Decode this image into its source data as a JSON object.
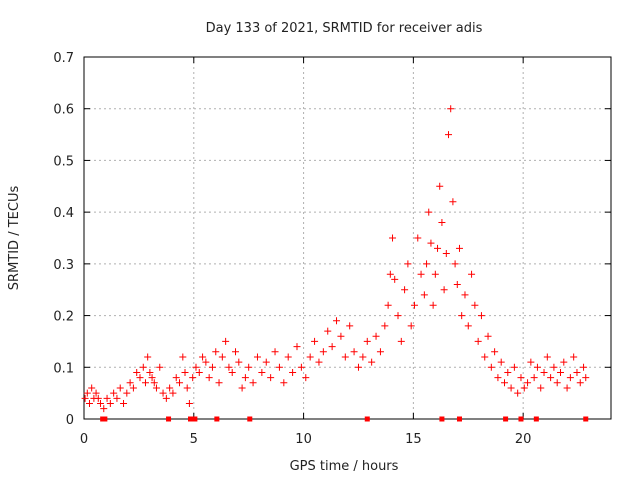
{
  "chart_data": {
    "type": "scatter",
    "title": "Day 133 of 2021, SRMTID for receiver adis",
    "xlabel": "GPS time / hours",
    "ylabel": "SRMTID / TECUs",
    "xlim": [
      0,
      24
    ],
    "ylim": [
      0,
      0.7
    ],
    "xticks": [
      0,
      5,
      10,
      15,
      20
    ],
    "yticks": [
      0,
      0.1,
      0.2,
      0.3,
      0.4,
      0.5,
      0.6,
      0.7
    ],
    "grid": true,
    "marker": "+",
    "color": "#ff0000",
    "series": [
      {
        "name": "SRMTID",
        "x": [
          0.05,
          0.15,
          0.25,
          0.35,
          0.45,
          0.55,
          0.65,
          0.75,
          0.9,
          1.05,
          1.2,
          1.35,
          1.5,
          1.65,
          1.8,
          1.95,
          2.1,
          2.25,
          2.4,
          2.55,
          2.7,
          2.8,
          2.9,
          3.0,
          3.1,
          3.2,
          3.3,
          3.45,
          3.6,
          3.75,
          3.9,
          4.05,
          4.2,
          4.35,
          4.5,
          4.6,
          4.7,
          4.8,
          4.95,
          5.1,
          5.25,
          5.4,
          5.55,
          5.7,
          5.85,
          6.0,
          6.15,
          6.3,
          6.45,
          6.6,
          6.75,
          6.9,
          7.05,
          7.2,
          7.35,
          7.5,
          7.7,
          7.9,
          8.1,
          8.3,
          8.5,
          8.7,
          8.9,
          9.1,
          9.3,
          9.5,
          9.7,
          9.9,
          10.1,
          10.3,
          10.5,
          10.7,
          10.9,
          11.1,
          11.3,
          11.5,
          11.7,
          11.9,
          12.1,
          12.3,
          12.5,
          12.7,
          12.9,
          13.1,
          13.3,
          13.5,
          13.7,
          13.85,
          13.95,
          14.05,
          14.15,
          14.3,
          14.45,
          14.6,
          14.75,
          14.9,
          15.05,
          15.2,
          15.35,
          15.5,
          15.6,
          15.7,
          15.8,
          15.9,
          16.0,
          16.1,
          16.2,
          16.3,
          16.4,
          16.5,
          16.6,
          16.7,
          16.8,
          16.9,
          17.0,
          17.1,
          17.2,
          17.35,
          17.5,
          17.65,
          17.8,
          17.95,
          18.1,
          18.25,
          18.4,
          18.55,
          18.7,
          18.85,
          19.0,
          19.15,
          19.3,
          19.45,
          19.6,
          19.75,
          19.9,
          20.05,
          20.2,
          20.35,
          20.5,
          20.65,
          20.8,
          20.95,
          21.1,
          21.25,
          21.4,
          21.55,
          21.7,
          21.85,
          22.0,
          22.15,
          22.3,
          22.45,
          22.6,
          22.75,
          22.85
        ],
        "y": [
          0.04,
          0.05,
          0.03,
          0.06,
          0.04,
          0.05,
          0.04,
          0.03,
          0.02,
          0.04,
          0.03,
          0.05,
          0.04,
          0.06,
          0.03,
          0.05,
          0.07,
          0.06,
          0.09,
          0.08,
          0.1,
          0.07,
          0.12,
          0.09,
          0.08,
          0.07,
          0.06,
          0.1,
          0.05,
          0.04,
          0.06,
          0.05,
          0.08,
          0.07,
          0.12,
          0.09,
          0.06,
          0.03,
          0.08,
          0.1,
          0.09,
          0.12,
          0.11,
          0.08,
          0.1,
          0.13,
          0.07,
          0.12,
          0.15,
          0.1,
          0.09,
          0.13,
          0.11,
          0.06,
          0.08,
          0.1,
          0.07,
          0.12,
          0.09,
          0.11,
          0.08,
          0.13,
          0.1,
          0.07,
          0.12,
          0.09,
          0.14,
          0.1,
          0.08,
          0.12,
          0.15,
          0.11,
          0.13,
          0.17,
          0.14,
          0.19,
          0.16,
          0.12,
          0.18,
          0.13,
          0.1,
          0.12,
          0.15,
          0.11,
          0.16,
          0.13,
          0.18,
          0.22,
          0.28,
          0.35,
          0.27,
          0.2,
          0.15,
          0.25,
          0.3,
          0.18,
          0.22,
          0.35,
          0.28,
          0.24,
          0.3,
          0.4,
          0.34,
          0.22,
          0.28,
          0.33,
          0.45,
          0.38,
          0.25,
          0.32,
          0.55,
          0.6,
          0.42,
          0.3,
          0.26,
          0.33,
          0.2,
          0.24,
          0.18,
          0.28,
          0.22,
          0.15,
          0.2,
          0.12,
          0.16,
          0.1,
          0.13,
          0.08,
          0.11,
          0.07,
          0.09,
          0.06,
          0.1,
          0.05,
          0.08,
          0.06,
          0.07,
          0.11,
          0.08,
          0.1,
          0.06,
          0.09,
          0.12,
          0.08,
          0.1,
          0.07,
          0.09,
          0.11,
          0.06,
          0.08,
          0.12,
          0.09,
          0.07,
          0.1,
          0.08
        ]
      }
    ],
    "gap_markers_x": [
      0.85,
      0.95,
      3.85,
      4.85,
      5.05,
      6.05,
      7.55,
      12.9,
      16.3,
      17.1,
      19.2,
      19.9,
      20.6,
      22.85
    ]
  }
}
